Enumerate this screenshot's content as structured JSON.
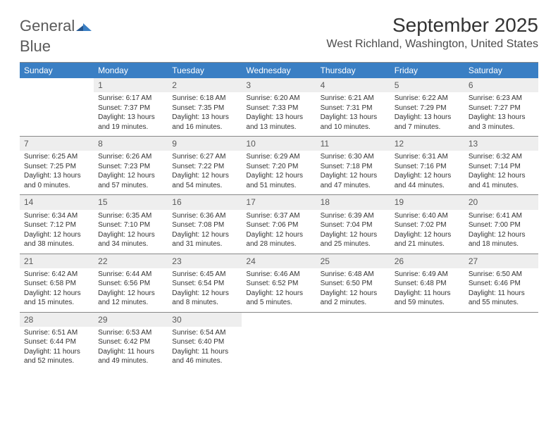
{
  "logo": {
    "general": "General",
    "blue": "Blue"
  },
  "title": "September 2025",
  "location": "West Richland, Washington, United States",
  "day_headers": [
    "Sunday",
    "Monday",
    "Tuesday",
    "Wednesday",
    "Thursday",
    "Friday",
    "Saturday"
  ],
  "labels": {
    "sunrise": "Sunrise:",
    "sunset": "Sunset:",
    "daylight": "Daylight:"
  },
  "colors": {
    "header_bg": "#3a7fc4",
    "header_text": "#ffffff",
    "date_bg": "#eeeeee",
    "date_text": "#595959",
    "body_text": "#333333",
    "border": "#888888",
    "background": "#ffffff",
    "logo_blue": "#3a7fc4",
    "logo_gray": "#5a5a5a"
  },
  "typography": {
    "title_fontsize": 28,
    "location_fontsize": 16,
    "dayheader_fontsize": 12,
    "datenum_fontsize": 12,
    "cell_fontsize": 10,
    "logo_fontsize": 22
  },
  "weeks": [
    [
      {
        "empty": true
      },
      {
        "date": "1",
        "sunrise": "6:17 AM",
        "sunset": "7:37 PM",
        "daylight": "13 hours and 19 minutes."
      },
      {
        "date": "2",
        "sunrise": "6:18 AM",
        "sunset": "7:35 PM",
        "daylight": "13 hours and 16 minutes."
      },
      {
        "date": "3",
        "sunrise": "6:20 AM",
        "sunset": "7:33 PM",
        "daylight": "13 hours and 13 minutes."
      },
      {
        "date": "4",
        "sunrise": "6:21 AM",
        "sunset": "7:31 PM",
        "daylight": "13 hours and 10 minutes."
      },
      {
        "date": "5",
        "sunrise": "6:22 AM",
        "sunset": "7:29 PM",
        "daylight": "13 hours and 7 minutes."
      },
      {
        "date": "6",
        "sunrise": "6:23 AM",
        "sunset": "7:27 PM",
        "daylight": "13 hours and 3 minutes."
      }
    ],
    [
      {
        "date": "7",
        "sunrise": "6:25 AM",
        "sunset": "7:25 PM",
        "daylight": "13 hours and 0 minutes."
      },
      {
        "date": "8",
        "sunrise": "6:26 AM",
        "sunset": "7:23 PM",
        "daylight": "12 hours and 57 minutes."
      },
      {
        "date": "9",
        "sunrise": "6:27 AM",
        "sunset": "7:22 PM",
        "daylight": "12 hours and 54 minutes."
      },
      {
        "date": "10",
        "sunrise": "6:29 AM",
        "sunset": "7:20 PM",
        "daylight": "12 hours and 51 minutes."
      },
      {
        "date": "11",
        "sunrise": "6:30 AM",
        "sunset": "7:18 PM",
        "daylight": "12 hours and 47 minutes."
      },
      {
        "date": "12",
        "sunrise": "6:31 AM",
        "sunset": "7:16 PM",
        "daylight": "12 hours and 44 minutes."
      },
      {
        "date": "13",
        "sunrise": "6:32 AM",
        "sunset": "7:14 PM",
        "daylight": "12 hours and 41 minutes."
      }
    ],
    [
      {
        "date": "14",
        "sunrise": "6:34 AM",
        "sunset": "7:12 PM",
        "daylight": "12 hours and 38 minutes."
      },
      {
        "date": "15",
        "sunrise": "6:35 AM",
        "sunset": "7:10 PM",
        "daylight": "12 hours and 34 minutes."
      },
      {
        "date": "16",
        "sunrise": "6:36 AM",
        "sunset": "7:08 PM",
        "daylight": "12 hours and 31 minutes."
      },
      {
        "date": "17",
        "sunrise": "6:37 AM",
        "sunset": "7:06 PM",
        "daylight": "12 hours and 28 minutes."
      },
      {
        "date": "18",
        "sunrise": "6:39 AM",
        "sunset": "7:04 PM",
        "daylight": "12 hours and 25 minutes."
      },
      {
        "date": "19",
        "sunrise": "6:40 AM",
        "sunset": "7:02 PM",
        "daylight": "12 hours and 21 minutes."
      },
      {
        "date": "20",
        "sunrise": "6:41 AM",
        "sunset": "7:00 PM",
        "daylight": "12 hours and 18 minutes."
      }
    ],
    [
      {
        "date": "21",
        "sunrise": "6:42 AM",
        "sunset": "6:58 PM",
        "daylight": "12 hours and 15 minutes."
      },
      {
        "date": "22",
        "sunrise": "6:44 AM",
        "sunset": "6:56 PM",
        "daylight": "12 hours and 12 minutes."
      },
      {
        "date": "23",
        "sunrise": "6:45 AM",
        "sunset": "6:54 PM",
        "daylight": "12 hours and 8 minutes."
      },
      {
        "date": "24",
        "sunrise": "6:46 AM",
        "sunset": "6:52 PM",
        "daylight": "12 hours and 5 minutes."
      },
      {
        "date": "25",
        "sunrise": "6:48 AM",
        "sunset": "6:50 PM",
        "daylight": "12 hours and 2 minutes."
      },
      {
        "date": "26",
        "sunrise": "6:49 AM",
        "sunset": "6:48 PM",
        "daylight": "11 hours and 59 minutes."
      },
      {
        "date": "27",
        "sunrise": "6:50 AM",
        "sunset": "6:46 PM",
        "daylight": "11 hours and 55 minutes."
      }
    ],
    [
      {
        "date": "28",
        "sunrise": "6:51 AM",
        "sunset": "6:44 PM",
        "daylight": "11 hours and 52 minutes."
      },
      {
        "date": "29",
        "sunrise": "6:53 AM",
        "sunset": "6:42 PM",
        "daylight": "11 hours and 49 minutes."
      },
      {
        "date": "30",
        "sunrise": "6:54 AM",
        "sunset": "6:40 PM",
        "daylight": "11 hours and 46 minutes."
      },
      {
        "empty": true
      },
      {
        "empty": true
      },
      {
        "empty": true
      },
      {
        "empty": true
      }
    ]
  ]
}
